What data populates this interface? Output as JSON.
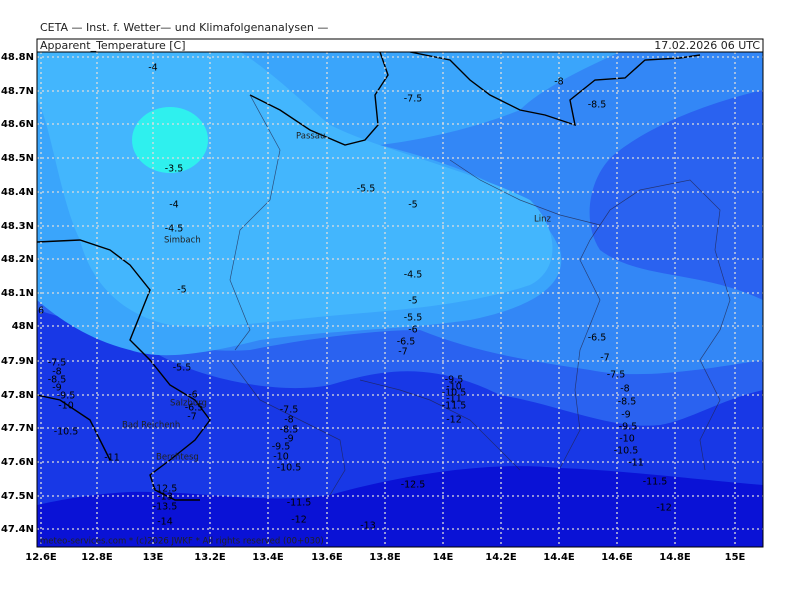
{
  "header": {
    "source": "CETA — Inst. f. Wetter— und Klimafolgenanalysen —",
    "variable": "Apparent_Temperature [C]",
    "valid_time": "17.02.2026 06 UTC"
  },
  "axes": {
    "latitude_labels": [
      "48.8N",
      "48.7N",
      "48.6N",
      "48.5N",
      "48.4N",
      "48.3N",
      "48.2N",
      "48.1N",
      "48N",
      "47.9N",
      "47.8N",
      "47.7N",
      "47.6N",
      "47.5N",
      "47.4N"
    ],
    "longitude_labels": [
      "12.6E",
      "12.8E",
      "13E",
      "13.2E",
      "13.4E",
      "13.6E",
      "13.8E",
      "14E",
      "14.2E",
      "14.4E",
      "14.6E",
      "14.8E",
      "15E"
    ]
  },
  "places": [
    "Passau",
    "Linz",
    "Simbach",
    "Salzburg",
    "Bad Reichenh",
    "Berchtesg"
  ],
  "contour_labels": [
    "-4",
    "-7.5",
    "-8",
    "-8.5",
    "-3.5",
    "-5.5",
    "-5",
    "-4",
    "-4.5",
    "-4.5",
    "-5",
    "-5",
    "-5.5",
    "-6",
    "-6.5",
    "-7",
    "6",
    "-5.5",
    "-6.5",
    "-7",
    "-7.5",
    "-8",
    "-8.5",
    "-9",
    "-9.5",
    "-10",
    "-10.5",
    "-11",
    "-11.5",
    "-12",
    "-7.5",
    "-8",
    "-8.5",
    "-9",
    "-9.5",
    "-10",
    "-10.5",
    "-11",
    "-6",
    "-6.5",
    "-7",
    "-7.5",
    "-8",
    "-8.5",
    "-9",
    "-9.5",
    "-10",
    "-10.5",
    "-9.5",
    "-10",
    "-10.5",
    "-11",
    "-11.5",
    "-12",
    "-12.5",
    "-11.5",
    "-12",
    "-12.5",
    "-13",
    "-13.5",
    "-14",
    "-13"
  ],
  "footer": "meteo-services.com * (c)2026 JWKF * All rights reserved (00+030)"
}
